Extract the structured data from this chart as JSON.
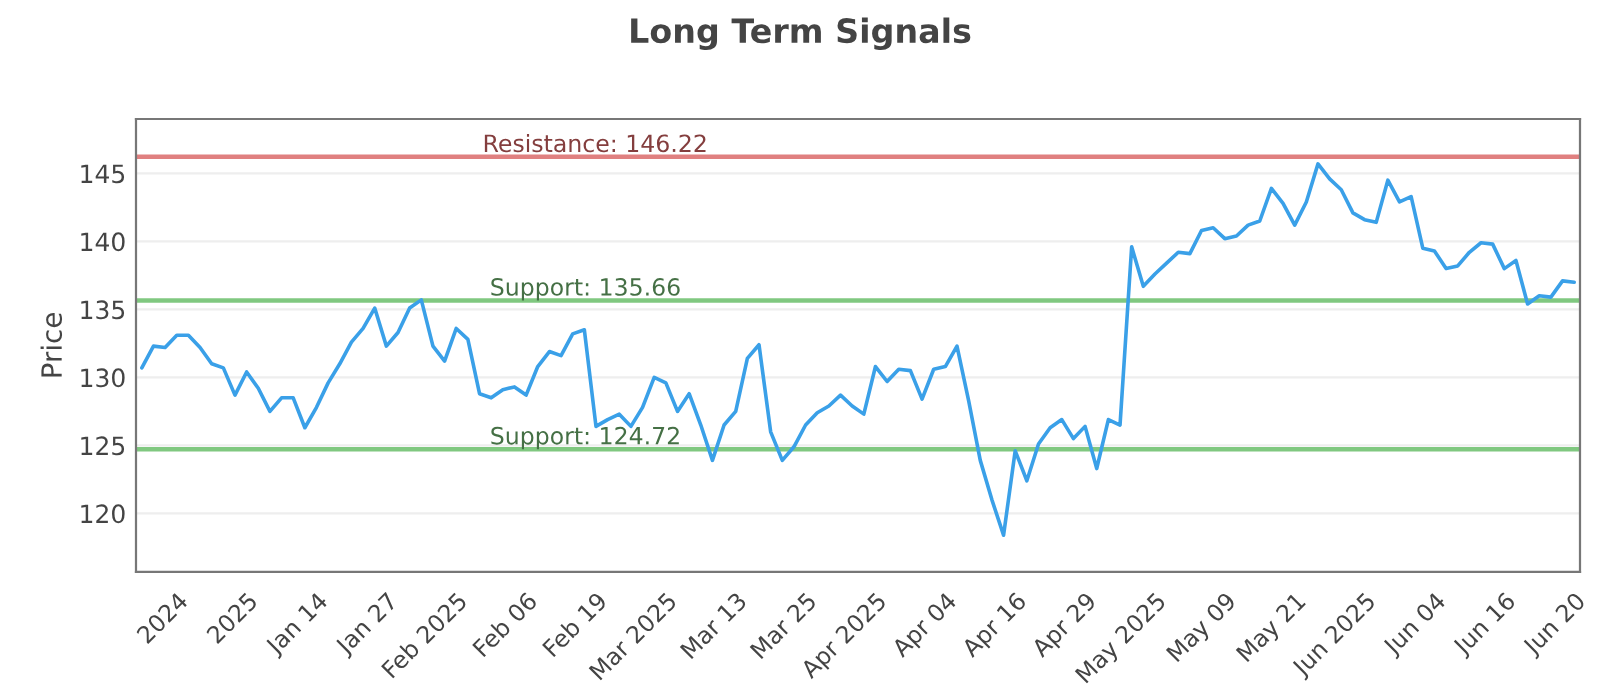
{
  "chart_data": {
    "type": "line",
    "title": "Long Term Signals",
    "ylabel": "Price",
    "categories": [
      null,
      null,
      null,
      "2024",
      null,
      null,
      null,
      null,
      null,
      "2025",
      null,
      null,
      null,
      null,
      null,
      "Jan 14",
      null,
      null,
      null,
      null,
      null,
      "Jan 27",
      null,
      null,
      null,
      null,
      null,
      "Feb 2025",
      null,
      null,
      null,
      null,
      null,
      "Feb 06",
      null,
      null,
      null,
      null,
      null,
      "Feb 19",
      null,
      null,
      null,
      null,
      null,
      "Mar 2025",
      null,
      null,
      null,
      null,
      null,
      "Mar 13",
      null,
      null,
      null,
      null,
      null,
      "Mar 25",
      null,
      null,
      null,
      null,
      null,
      "Apr 2025",
      null,
      null,
      null,
      null,
      null,
      "Apr 04",
      null,
      null,
      null,
      null,
      null,
      "Apr 16",
      null,
      null,
      null,
      null,
      null,
      "Apr 29",
      null,
      null,
      null,
      null,
      null,
      "May 2025",
      null,
      null,
      null,
      null,
      null,
      "May 09",
      null,
      null,
      null,
      null,
      null,
      "May 21",
      null,
      null,
      null,
      null,
      null,
      "Jun 2025",
      null,
      null,
      null,
      null,
      null,
      "Jun 04",
      null,
      null,
      null,
      null,
      null,
      "Jun 16",
      null,
      null,
      null,
      null,
      null,
      "Jun 20"
    ],
    "series": [
      {
        "color": "#3aa0e8",
        "values": [
          130.7,
          132.3,
          132.2,
          133.1,
          133.1,
          132.2,
          131.0,
          130.7,
          128.7,
          130.4,
          129.2,
          127.5,
          128.5,
          128.5,
          126.3,
          127.8,
          129.6,
          131.0,
          132.6,
          133.6,
          135.1,
          132.3,
          133.3,
          135.1,
          135.7,
          132.3,
          131.2,
          133.6,
          132.8,
          128.8,
          128.5,
          129.1,
          129.3,
          128.7,
          130.8,
          131.9,
          131.6,
          133.2,
          133.5,
          126.4,
          126.9,
          127.3,
          126.4,
          127.8,
          130.0,
          129.6,
          127.5,
          128.8,
          126.5,
          123.9,
          126.5,
          127.5,
          131.4,
          132.4,
          126.0,
          123.9,
          124.9,
          126.5,
          127.4,
          127.9,
          128.7,
          127.9,
          127.3,
          130.8,
          129.7,
          130.6,
          130.5,
          128.4,
          130.6,
          130.8,
          132.3,
          128.3,
          123.9,
          121.0,
          118.4,
          124.6,
          122.4,
          125.1,
          126.3,
          126.9,
          125.5,
          126.4,
          123.3,
          126.9,
          126.5,
          139.6,
          136.7,
          137.6,
          138.4,
          139.2,
          139.1,
          140.8,
          141.0,
          140.2,
          140.4,
          141.2,
          141.5,
          143.9,
          142.8,
          141.2,
          142.9,
          145.7,
          144.6,
          143.8,
          142.1,
          141.6,
          141.4,
          144.5,
          142.9,
          143.3,
          139.5,
          139.3,
          138.0,
          138.2,
          139.2,
          139.9,
          139.8,
          138.0,
          138.6,
          135.4,
          136.0,
          135.9,
          137.1,
          137.0
        ]
      }
    ],
    "ylim": [
      115.7,
      149
    ],
    "yticks": [
      120,
      125,
      130,
      135,
      140,
      145
    ],
    "grid": "y",
    "legend": false,
    "ref_lines": [
      {
        "axis": "y",
        "value": 146.22,
        "label": "Resistance: 146.22",
        "color": "#e08080"
      },
      {
        "axis": "y",
        "value": 135.66,
        "label": "Support: 135.66",
        "color": "#80c880"
      },
      {
        "axis": "y",
        "value": 124.72,
        "label": "Support: 124.72",
        "color": "#80c880"
      }
    ]
  }
}
